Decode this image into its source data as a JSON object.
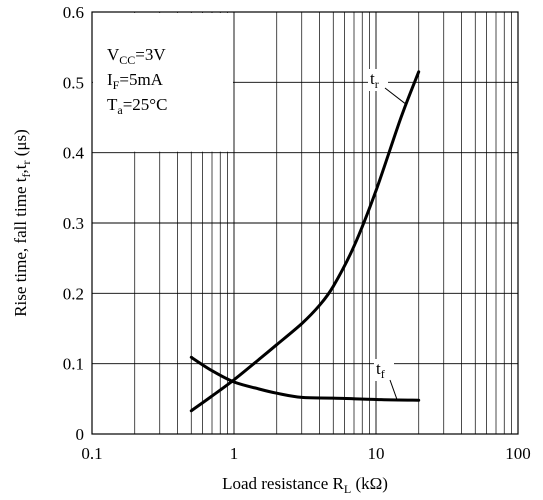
{
  "chart_data": {
    "type": "line",
    "x_scale": "log",
    "xlim": [
      0.1,
      100
    ],
    "ylim": [
      0,
      0.6
    ],
    "grid": true,
    "x_ticks": [
      {
        "value": 0.1,
        "label": "0.1"
      },
      {
        "value": 1,
        "label": "1"
      },
      {
        "value": 10,
        "label": "10"
      },
      {
        "value": 100,
        "label": "100"
      }
    ],
    "y_ticks": [
      {
        "value": 0,
        "label": "0"
      },
      {
        "value": 0.1,
        "label": "0.1"
      },
      {
        "value": 0.2,
        "label": "0.2"
      },
      {
        "value": 0.3,
        "label": "0.3"
      },
      {
        "value": 0.4,
        "label": "0.4"
      },
      {
        "value": 0.5,
        "label": "0.5"
      },
      {
        "value": 0.6,
        "label": "0.6"
      }
    ],
    "xlabel": {
      "main": "Load resistance R",
      "sub": "L",
      "tail": " (kΩ)"
    },
    "ylabel": {
      "p1": "Rise time, fall time t",
      "s1": "f",
      "p2": ",t",
      "s2": "r",
      "p3": " (μs)"
    },
    "conditions": [
      {
        "main": "V",
        "sub": "CC",
        "tail": "=3V"
      },
      {
        "main": "I",
        "sub": "F",
        "tail": "=5mA"
      },
      {
        "main": "T",
        "sub": "a",
        "tail": "=25°C"
      }
    ],
    "series": [
      {
        "name": "tr",
        "label_main": "t",
        "label_sub": "r",
        "x": [
          0.5,
          0.7,
          1,
          1.5,
          2,
          3,
          4,
          5,
          7,
          10,
          15,
          20
        ],
        "y": [
          0.033,
          0.054,
          0.077,
          0.106,
          0.127,
          0.157,
          0.183,
          0.21,
          0.267,
          0.346,
          0.45,
          0.515
        ]
      },
      {
        "name": "tf",
        "label_main": "t",
        "label_sub": "f",
        "x": [
          0.5,
          0.7,
          1,
          1.5,
          2,
          3,
          5,
          10,
          20
        ],
        "y": [
          0.109,
          0.09,
          0.074,
          0.064,
          0.058,
          0.052,
          0.051,
          0.049,
          0.048
        ]
      }
    ]
  }
}
